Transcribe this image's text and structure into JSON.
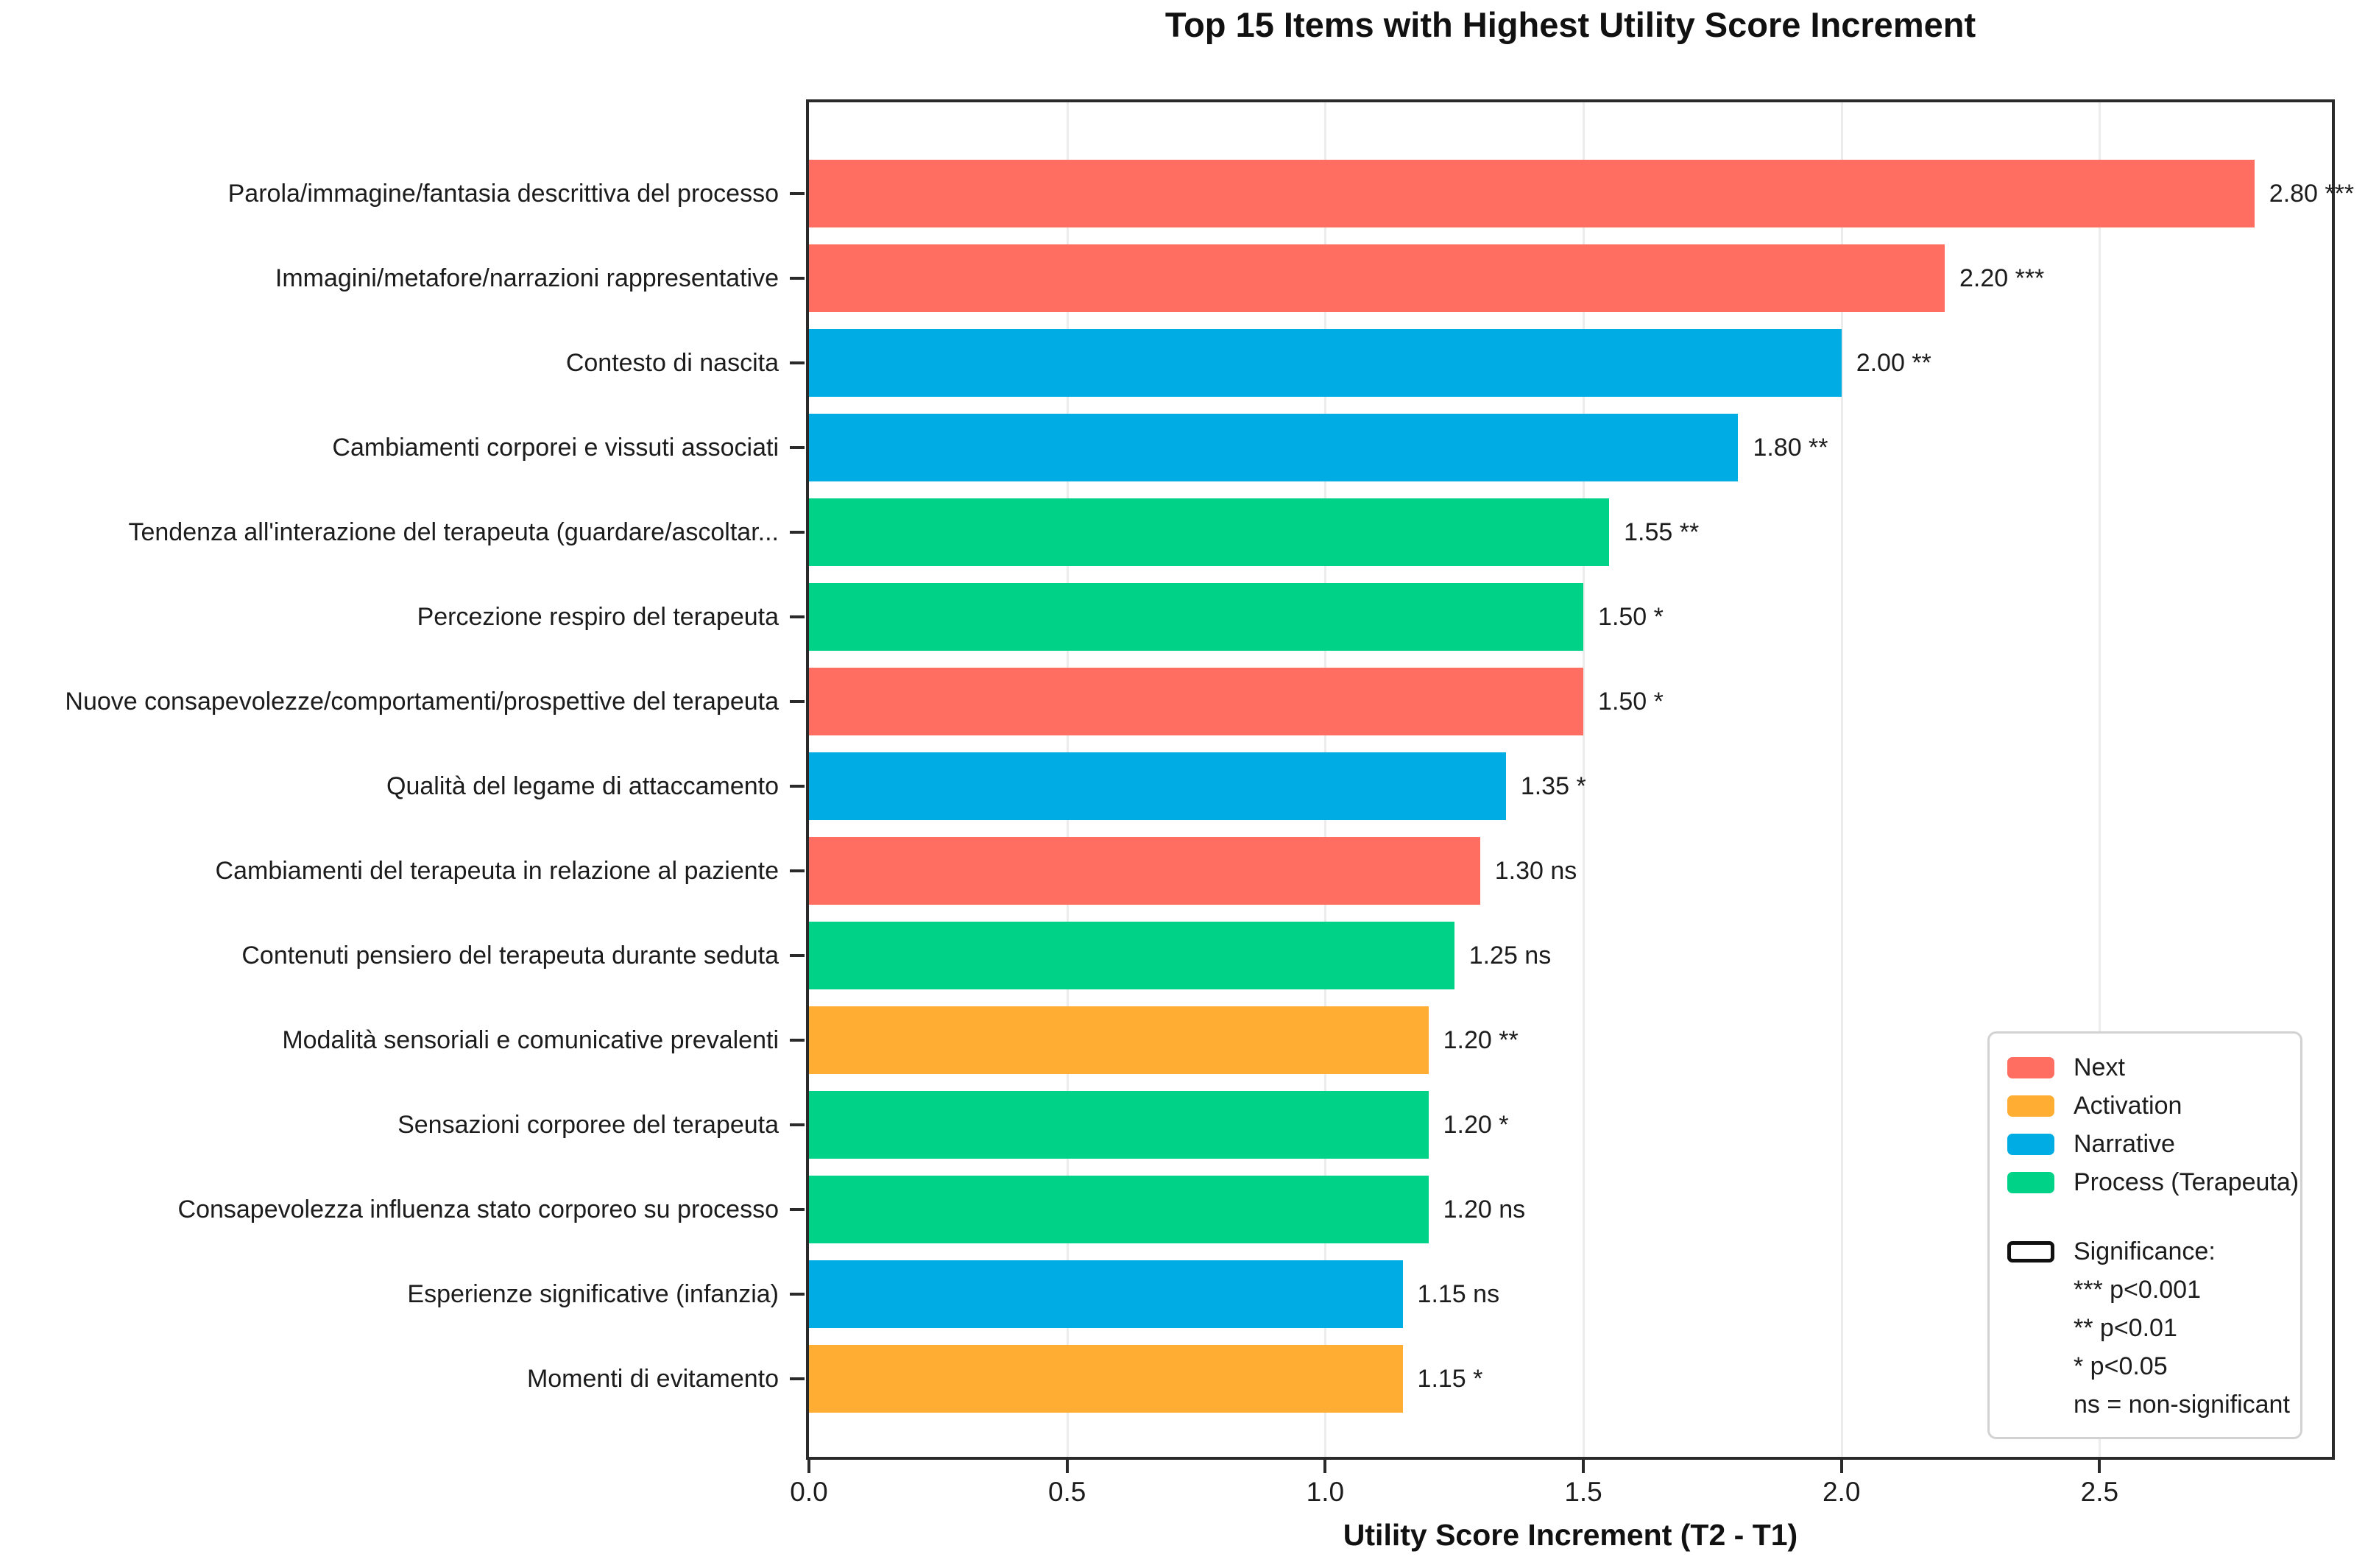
{
  "title": "Top 15 Items with Highest Utility Score Increment",
  "xlabel": "Utility Score Increment (T2 - T1)",
  "colors": {
    "Next": "#FF6E61",
    "Activation": "#FFAE33",
    "Narrative": "#00ACE4",
    "Process (Terapeuta)": "#00D287",
    "grid": "#DCDCDC",
    "spine": "#2A2A2A"
  },
  "chart_data": {
    "type": "bar",
    "orientation": "horizontal",
    "title": "Top 15 Items with Highest Utility Score Increment",
    "xlabel": "Utility Score Increment (T2 - T1)",
    "xlim": [
      0,
      2.95
    ],
    "x_ticks": [
      0.0,
      0.5,
      1.0,
      1.5,
      2.0,
      2.5
    ],
    "x_tick_labels": [
      "0.0",
      "0.5",
      "1.0",
      "1.5",
      "2.0",
      "2.5"
    ],
    "grid": true,
    "legend_position": "lower right",
    "items": [
      {
        "label": "Parola/immagine/fantasia descrittiva del processo",
        "value": 2.8,
        "value_label": "2.80",
        "significance": "***",
        "category": "Next"
      },
      {
        "label": "Immagini/metafore/narrazioni rappresentative",
        "value": 2.2,
        "value_label": "2.20",
        "significance": "***",
        "category": "Next"
      },
      {
        "label": "Contesto di nascita",
        "value": 2.0,
        "value_label": "2.00",
        "significance": "**",
        "category": "Narrative"
      },
      {
        "label": "Cambiamenti corporei e vissuti associati",
        "value": 1.8,
        "value_label": "1.80",
        "significance": "**",
        "category": "Narrative"
      },
      {
        "label": "Tendenza all'interazione del terapeuta (guardare/ascoltar...",
        "value": 1.55,
        "value_label": "1.55",
        "significance": "**",
        "category": "Process (Terapeuta)"
      },
      {
        "label": "Percezione respiro del terapeuta",
        "value": 1.5,
        "value_label": "1.50",
        "significance": "*",
        "category": "Process (Terapeuta)"
      },
      {
        "label": "Nuove consapevolezze/comportamenti/prospettive del terapeuta",
        "value": 1.5,
        "value_label": "1.50",
        "significance": "*",
        "category": "Next"
      },
      {
        "label": "Qualità del legame di attaccamento",
        "value": 1.35,
        "value_label": "1.35",
        "significance": "*",
        "category": "Narrative"
      },
      {
        "label": "Cambiamenti del terapeuta in relazione al paziente",
        "value": 1.3,
        "value_label": "1.30",
        "significance": "ns",
        "category": "Next"
      },
      {
        "label": "Contenuti pensiero del terapeuta durante seduta",
        "value": 1.25,
        "value_label": "1.25",
        "significance": "ns",
        "category": "Process (Terapeuta)"
      },
      {
        "label": "Modalità sensoriali e comunicative prevalenti",
        "value": 1.2,
        "value_label": "1.20",
        "significance": "**",
        "category": "Activation"
      },
      {
        "label": "Sensazioni corporee del terapeuta",
        "value": 1.2,
        "value_label": "1.20",
        "significance": "*",
        "category": "Process (Terapeuta)"
      },
      {
        "label": "Consapevolezza influenza stato corporeo su processo",
        "value": 1.2,
        "value_label": "1.20",
        "significance": "ns",
        "category": "Process (Terapeuta)"
      },
      {
        "label": "Esperienze significative (infanzia)",
        "value": 1.15,
        "value_label": "1.15",
        "significance": "ns",
        "category": "Narrative"
      },
      {
        "label": "Momenti di evitamento",
        "value": 1.15,
        "value_label": "1.15",
        "significance": "*",
        "category": "Activation"
      }
    ]
  },
  "legend": {
    "categories": [
      {
        "label": "Next",
        "color": "#FF6E61"
      },
      {
        "label": "Activation",
        "color": "#FFAE33"
      },
      {
        "label": "Narrative",
        "color": "#00ACE4"
      },
      {
        "label": "Process (Terapeuta)",
        "color": "#00D287"
      }
    ],
    "significance_title": "Significance:",
    "significance_lines": [
      "*** p<0.001",
      "** p<0.01",
      "* p<0.05",
      "ns = non-significant"
    ]
  }
}
